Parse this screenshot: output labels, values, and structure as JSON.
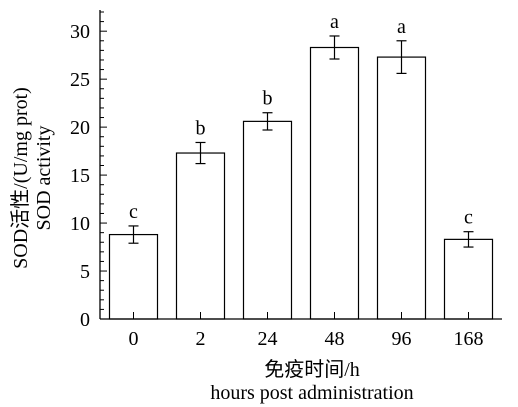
{
  "chart_data": {
    "type": "bar",
    "categories": [
      "0",
      "2",
      "24",
      "48",
      "96",
      "168"
    ],
    "values": [
      8.8,
      17.3,
      20.6,
      28.3,
      27.3,
      8.3
    ],
    "errors": [
      0.9,
      1.1,
      0.9,
      1.2,
      1.7,
      0.8
    ],
    "significance_letters": [
      "c",
      "b",
      "b",
      "a",
      "a",
      "c"
    ],
    "xlabel": [
      "免疫时间/h",
      "hours post administration"
    ],
    "ylabel": [
      "SOD活性/(U/mg prot)",
      "SOD activity"
    ],
    "ylim": [
      0,
      32
    ],
    "yticks": [
      0,
      5,
      10,
      15,
      20,
      25,
      30
    ],
    "bar_fill": "#ffffff",
    "bar_stroke": "#000000",
    "grid": false,
    "legend": "none"
  }
}
